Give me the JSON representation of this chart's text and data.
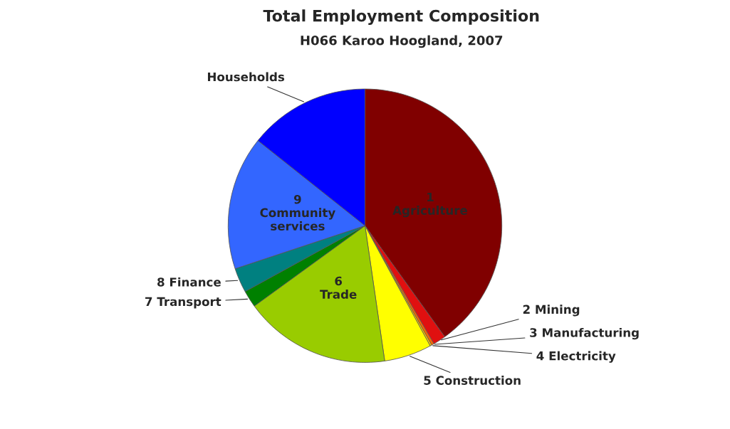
{
  "chart_data": {
    "type": "pie",
    "title": "Total Employment Composition",
    "subtitle": "H066 Karoo Hoogland, 2007",
    "categories": [
      "1 Agriculture",
      "2 Mining",
      "3 Manufacturing",
      "4 Electricity",
      "5 Construction",
      "6 Trade",
      "7 Transport",
      "8 Finance",
      "9 Community services",
      "Households"
    ],
    "values": [
      40.1,
      1.5,
      0.3,
      0.2,
      5.6,
      17.3,
      2.0,
      2.9,
      15.8,
      14.3
    ],
    "colors": [
      "#800000",
      "#e01010",
      "#ff6600",
      "#ffcc00",
      "#ffff00",
      "#99cc00",
      "#008000",
      "#008080",
      "#3366ff",
      "#0000ff"
    ],
    "data_labels": false
  }
}
